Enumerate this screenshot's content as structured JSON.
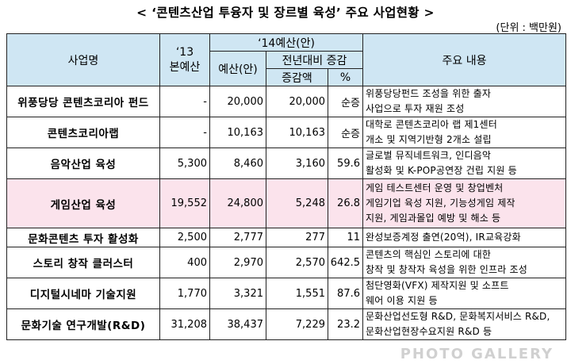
{
  "title": "< ‘콘텐츠산업 투융자 및 장르별 육성’ 주요 사업현황 >",
  "unit": "(단위 : 백만원)",
  "headers": {
    "name": "사업명",
    "budget13_line1": "‘13",
    "budget13_line2": "본예산",
    "budget14": "‘14예산(안)",
    "budget14_plan": "예산(안)",
    "yoy": "전년대비 증감",
    "change_amount": "증감액",
    "change_pct": "%",
    "desc": "주요 내용"
  },
  "rows": [
    {
      "name": "위풍당당 콘텐츠코리아 펀드",
      "b13": "-",
      "b14": "20,000",
      "diff": "20,000",
      "pct": "순증",
      "desc1": "위풍당당펀드 조성을 위한 출자",
      "desc2": "사업으로 투자 재원 조성",
      "desc3": ""
    },
    {
      "name": "콘텐츠코리아랩",
      "b13": "-",
      "b14": "10,163",
      "diff": "10,163",
      "pct": "순증",
      "desc1": "대학로 콘텐츠코리아 랩 제1센터",
      "desc2": "개소 및 지역기반형 2개소 설립",
      "desc3": ""
    },
    {
      "name": "음악산업 육성",
      "b13": "5,300",
      "b14": "8,460",
      "diff": "3,160",
      "pct": "59.6",
      "desc1": "글로벌 뮤직네트워크, 인디음악",
      "desc2": "활성화 및 K-POP공연장 건립 지원 등",
      "desc3": ""
    },
    {
      "name": "게임산업 육성",
      "b13": "19,552",
      "b14": "24,800",
      "diff": "5,248",
      "pct": "26.8",
      "desc1": "게임 테스트센터 운영 및 창업벤처",
      "desc2": "게임기업 육성 지원, 기능성게임 제작",
      "desc3": "지원, 게임과몰입 예방 및 해소 등"
    },
    {
      "name": "문화콘텐츠 투자 활성화",
      "b13": "2,500",
      "b14": "2,777",
      "diff": "277",
      "pct": "11",
      "desc1": "완성보증계정 출연(20억), IR교육강화",
      "desc2": "",
      "desc3": ""
    },
    {
      "name": "스토리 창작 클러스터",
      "b13": "400",
      "b14": "2,970",
      "diff": "2,570",
      "pct": "642.5",
      "desc1": "콘텐츠의 핵심인 스토리에 대한",
      "desc2": "창작 및 창작자 육성을 위한 인프라 조성",
      "desc3": ""
    },
    {
      "name": "디지털시네마 기술지원",
      "b13": "1,770",
      "b14": "3,321",
      "diff": "1,551",
      "pct": "87.6",
      "desc1": "첨단영화(VFX) 제작지원 및 소프트",
      "desc2": "웨어 이용 지원 등",
      "desc3": ""
    },
    {
      "name": "문화기술 연구개발(R&D)",
      "b13": "31,208",
      "b14": "38,437",
      "diff": "7,229",
      "pct": "23.2",
      "desc1": "문화산업선도형 R&D, 문화복지서비스 R&D,",
      "desc2": "문화산업현장수요지원 R&D 등",
      "desc3": ""
    }
  ],
  "watermark": "PHOTO GALLERY"
}
